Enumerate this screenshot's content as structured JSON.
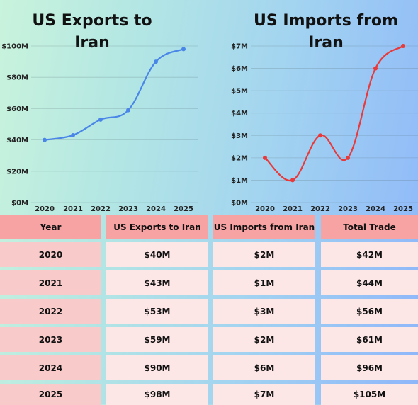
{
  "chart_data": [
    {
      "type": "line",
      "title": "US Exports to Iran",
      "categories": [
        "2020",
        "2021",
        "2022",
        "2023",
        "2024",
        "2025"
      ],
      "values": [
        40,
        43,
        53,
        59,
        90,
        98
      ],
      "yticks": [
        "$0M",
        "$20M",
        "$40M",
        "$60M",
        "$80M",
        "$100M"
      ],
      "ylim": [
        0,
        100
      ],
      "color": "#4a86e8",
      "grid": true
    },
    {
      "type": "line",
      "title": "US Imports from Iran",
      "categories": [
        "2020",
        "2021",
        "2022",
        "2023",
        "2024",
        "2025"
      ],
      "values": [
        2,
        1,
        3,
        2,
        6,
        7
      ],
      "yticks": [
        "$0M",
        "$1M",
        "$2M",
        "$3M",
        "$4M",
        "$5M",
        "$6M",
        "$7M"
      ],
      "ylim": [
        0,
        7
      ],
      "color": "#e8393b",
      "grid": true
    }
  ],
  "table": {
    "headers": [
      "Year",
      "US Exports to Iran",
      "US Imports from Iran",
      "Total Trade"
    ],
    "rows": [
      [
        "2020",
        "$40M",
        "$2M",
        "$42M"
      ],
      [
        "2021",
        "$43M",
        "$1M",
        "$44M"
      ],
      [
        "2022",
        "$53M",
        "$3M",
        "$56M"
      ],
      [
        "2023",
        "$59M",
        "$2M",
        "$61M"
      ],
      [
        "2024",
        "$90M",
        "$6M",
        "$96M"
      ],
      [
        "2025",
        "$98M",
        "$7M",
        "$105M"
      ]
    ]
  }
}
